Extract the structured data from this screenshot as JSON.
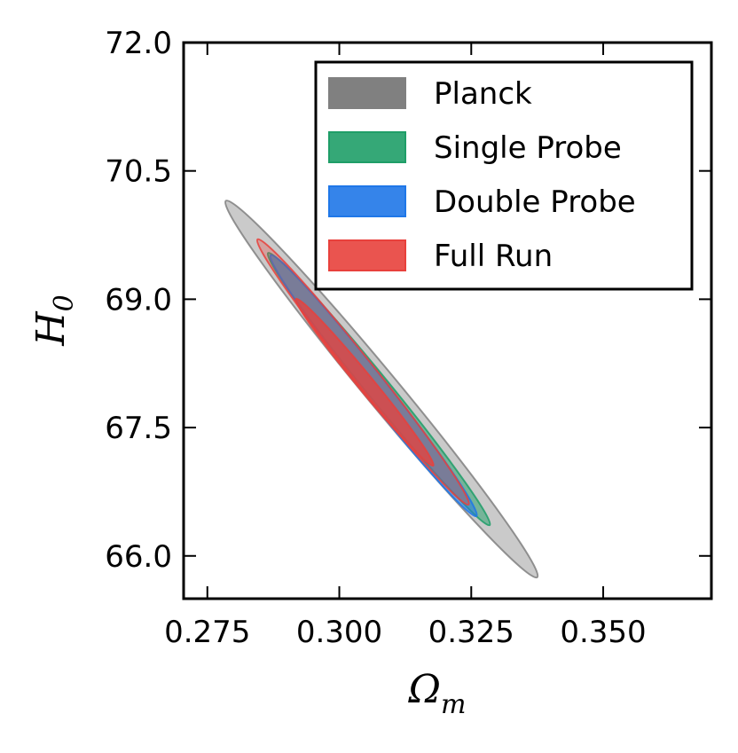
{
  "chart_data": {
    "type": "contour",
    "title": "",
    "xlabel": "Ω",
    "xlabel_sub": "m",
    "ylabel": "H",
    "ylabel_sub": "0",
    "xlim": [
      0.2705,
      0.3705
    ],
    "ylim": [
      65.5,
      72.0
    ],
    "x_ticks": [
      0.275,
      0.3,
      0.325,
      0.35
    ],
    "x_tick_labels": [
      "0.275",
      "0.300",
      "0.325",
      "0.350"
    ],
    "y_ticks": [
      66.0,
      67.5,
      69.0,
      70.5,
      72.0
    ],
    "y_tick_labels": [
      "66.0",
      "67.5",
      "69.0",
      "70.5",
      "72.0"
    ],
    "legend_position": "top-right",
    "series": [
      {
        "name": "Planck",
        "color": "#808080",
        "contours": [
          {
            "level": "outer",
            "center": [
              0.308,
              67.95
            ],
            "end1": [
              0.2785,
              70.15
            ],
            "end2": [
              0.3375,
              65.75
            ],
            "half_width": 0.0032,
            "opacity": 0.42
          }
        ]
      },
      {
        "name": "Single Probe",
        "color": "#1f9e68",
        "contours": [
          {
            "level": "outer",
            "center": [
              0.3075,
              67.95
            ],
            "end1": [
              0.2865,
              69.48
            ],
            "end2": [
              0.3285,
              66.3
            ],
            "half_width": 0.0022,
            "opacity": 0.5
          }
        ]
      },
      {
        "name": "Double Probe",
        "color": "#1f77e8",
        "contours": [
          {
            "level": "outer",
            "center": [
              0.3065,
              67.99
            ],
            "end1": [
              0.2875,
              69.5
            ],
            "end2": [
              0.3265,
              66.45
            ],
            "half_width": 0.0022,
            "opacity": 0.5
          }
        ]
      },
      {
        "name": "Full Run",
        "color": "#e8413c",
        "contours": [
          {
            "level": "outer",
            "center": [
              0.3045,
              68.15
            ],
            "end1": [
              0.2845,
              69.65
            ],
            "end2": [
              0.3245,
              66.55
            ],
            "half_width": 0.0022,
            "opacity": 0.3
          },
          {
            "level": "inner",
            "center": [
              0.3048,
              68.03
            ],
            "end1": [
              0.292,
              69.0
            ],
            "end2": [
              0.318,
              67.05
            ],
            "half_width": 0.0015,
            "opacity": 0.75
          }
        ]
      }
    ]
  }
}
